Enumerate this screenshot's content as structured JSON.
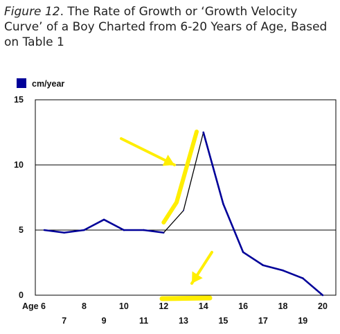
{
  "figure_label": "Figure 12",
  "title_rest": ". The Rate of Growth or ‘Growth Velocity Curve’ of a Boy  Charted from 6-20 Years of Age, Based on Table 1",
  "chart_data": {
    "type": "line",
    "title": "Figure 12. The Rate of Growth or ‘Growth Velocity Curve’ of a Boy  Charted from 6-20 Years of Age, Based on Table 1",
    "x_tick_prefix": "Age",
    "x": [
      6,
      7,
      8,
      9,
      10,
      11,
      12,
      13,
      14,
      15,
      16,
      17,
      18,
      19,
      20
    ],
    "series": [
      {
        "name": "cm/year",
        "color": "#000099",
        "values": [
          5.0,
          4.8,
          5.0,
          5.8,
          5.0,
          5.0,
          4.8,
          6.5,
          12.5,
          7.0,
          3.3,
          2.3,
          1.9,
          1.3,
          0.0
        ],
        "highlight_color": "#000000",
        "highlight_range": [
          12,
          14
        ]
      }
    ],
    "ylim": [
      0,
      15
    ],
    "y_ticks": [
      0,
      5,
      10,
      15
    ],
    "x_ticks_upper": [
      6,
      8,
      10,
      12,
      14,
      16,
      18,
      20
    ],
    "x_ticks_lower": [
      7,
      9,
      11,
      13,
      15,
      17,
      19
    ],
    "grid": true,
    "legend_position": "top-left",
    "annotation_color": "#ffee00",
    "annotations": [
      "yellow-arrow-to-growth-spurt",
      "yellow-highlight-along-rise",
      "yellow-arrow-to-x-axis",
      "yellow-highlight-under-x-axis"
    ]
  }
}
